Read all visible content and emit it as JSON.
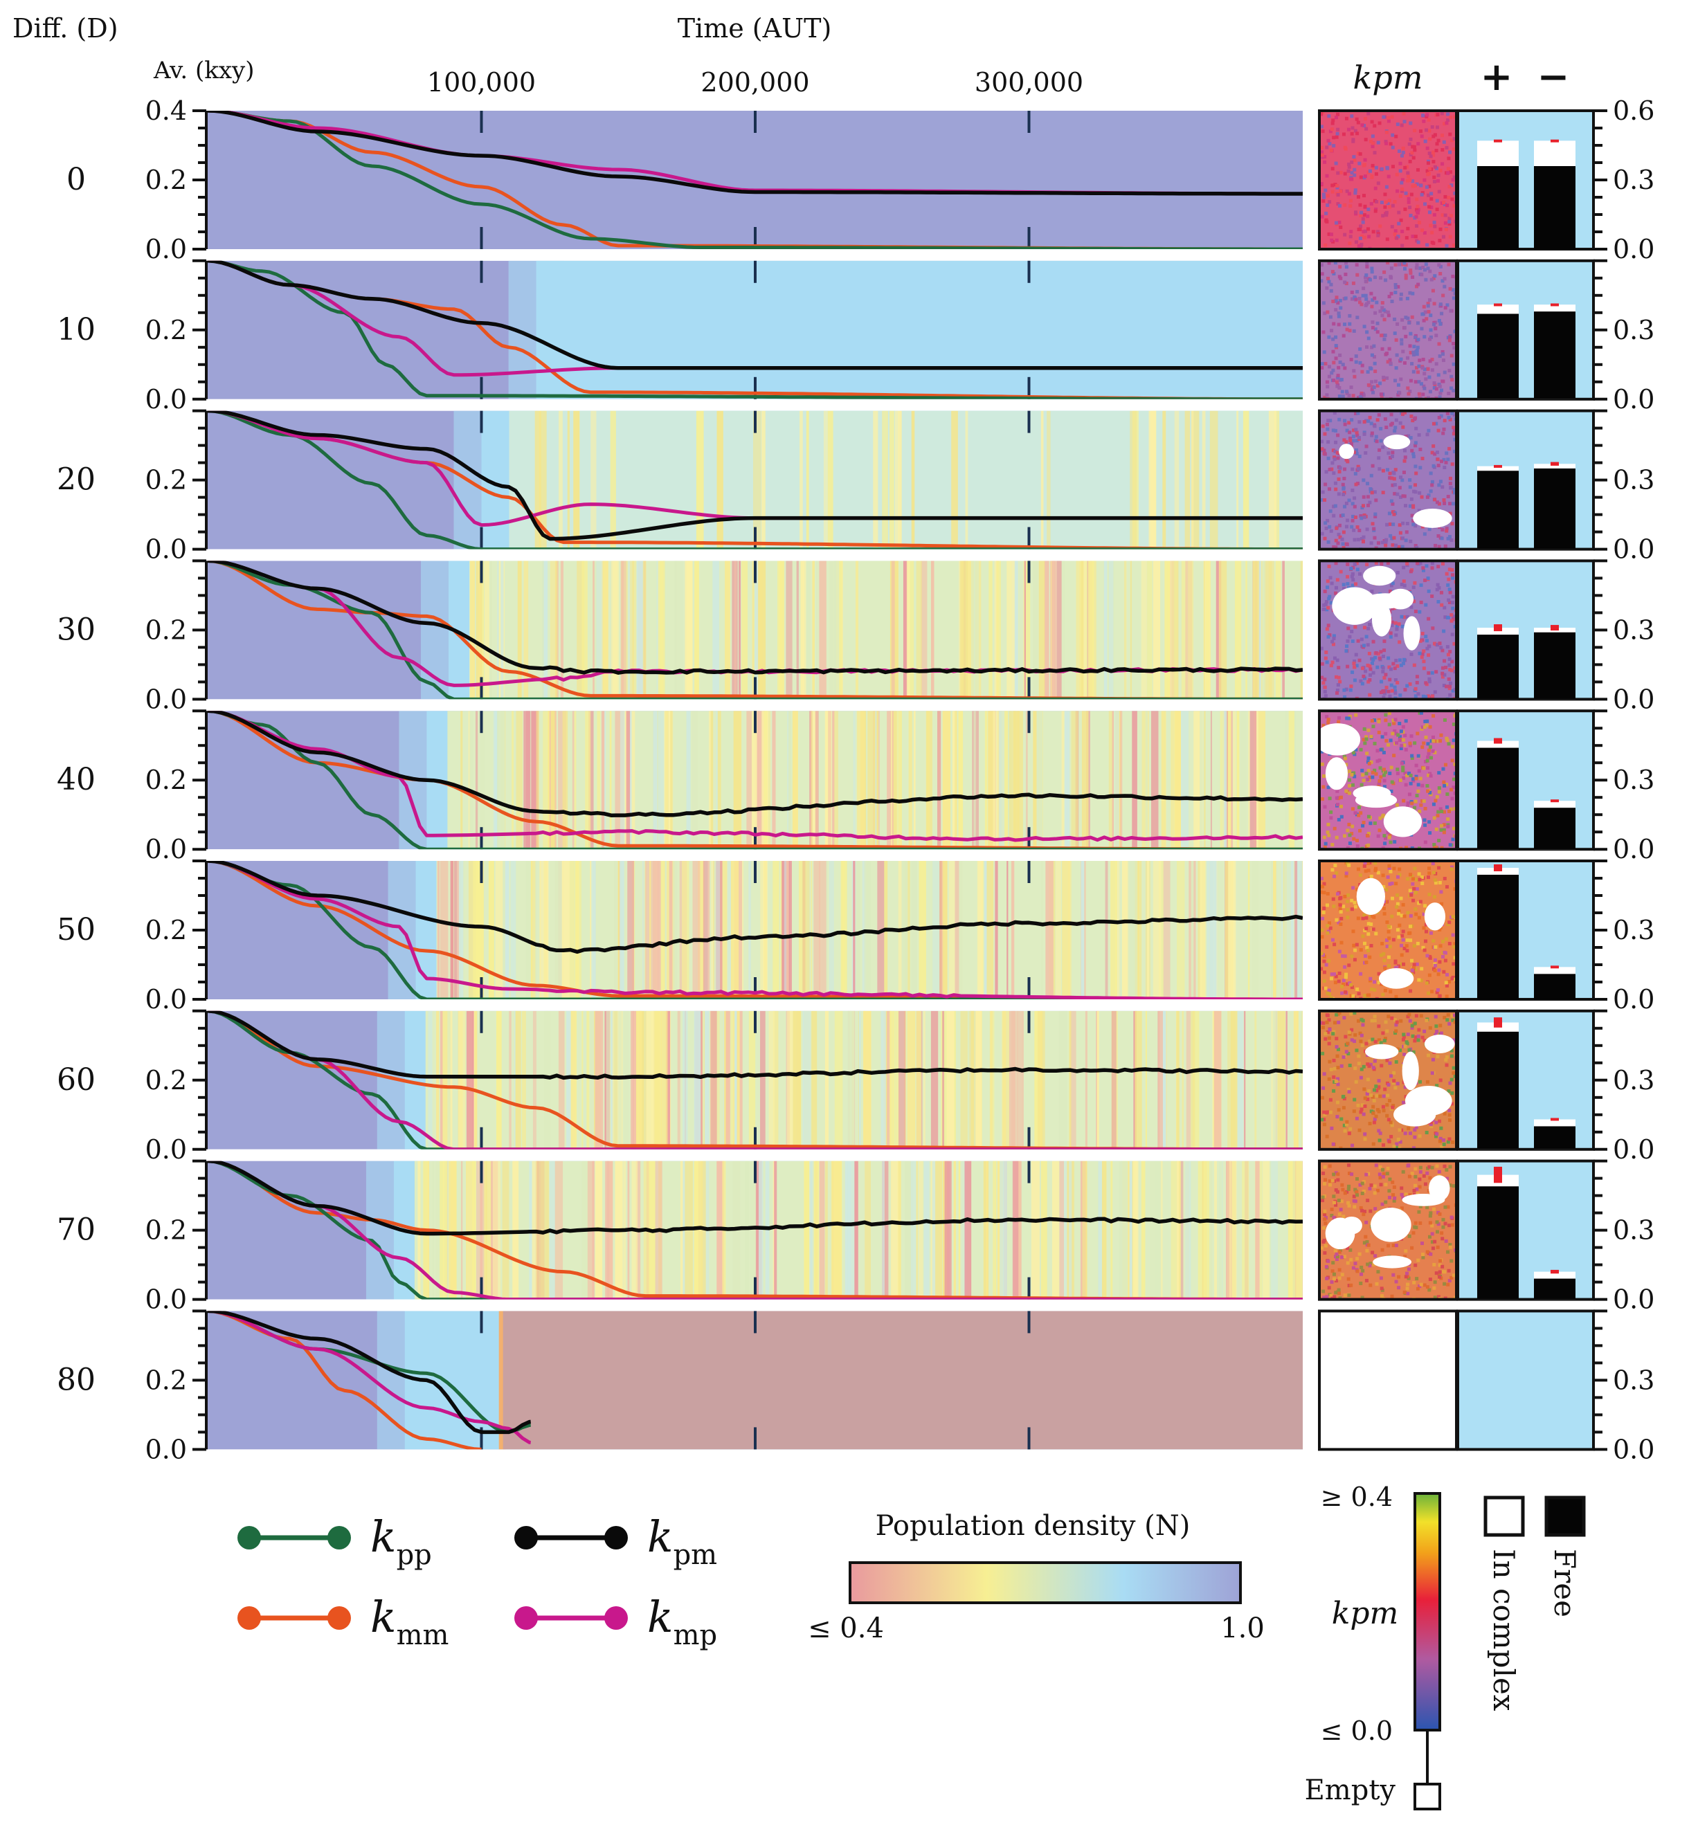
{
  "header": {
    "diff_label": "Diff. (D)",
    "time_label": "Time (AUT)",
    "av_label": "Av. (kxy)",
    "kpm_label": "kpm",
    "plus_label": "+",
    "minus_label": "−"
  },
  "colors": {
    "kpp": "#1e6b3f",
    "kmm": "#e8531f",
    "kpm": "#0a0a0a",
    "kmp": "#c8188c",
    "bar_panel_bg": "#aee0f5",
    "density_low": "#e99a9e",
    "density_mid_low": "#f7ef93",
    "density_mid_high": "#a9dcf4",
    "density_high": "#9ea3d6",
    "dead_region": "#c9a1a1"
  },
  "chart_data": {
    "type": "line",
    "x_axis": {
      "label": "Time (AUT)",
      "ticks": [
        100000,
        200000,
        300000
      ],
      "tick_labels": [
        "100,000",
        "200,000",
        "300,000"
      ],
      "xlim": [
        0,
        400000
      ]
    },
    "y_axis_left": {
      "label": "Av. (kxy)",
      "ylim": [
        0,
        0.4
      ],
      "tick_labels": [
        "0.0",
        "0.2",
        "0.4"
      ]
    },
    "y_axis_right": {
      "ylim": [
        0,
        0.6
      ],
      "tick_labels": [
        "0.0",
        "0.3",
        "0.6"
      ]
    },
    "legend": [
      {
        "key": "kpp",
        "sym": "k",
        "sub": "pp"
      },
      {
        "key": "kpm",
        "sym": "k",
        "sub": "pm"
      },
      {
        "key": "kmm",
        "sym": "k",
        "sub": "mm"
      },
      {
        "key": "kmp",
        "sym": "k",
        "sub": "mp"
      }
    ],
    "colorbar_density": {
      "title": "Population density (N)",
      "min_label": "≤ 0.4",
      "max_label": "1.0"
    },
    "colorbar_kpm": {
      "label": "kpm",
      "max_label": "≥ 0.4",
      "min_label": "≤ 0.0",
      "empty_label": "Empty"
    },
    "bar_legend": {
      "open_label": "In complex",
      "filled_label": "Free"
    },
    "rows": [
      {
        "D": "0",
        "end_time": 400000,
        "kpp": [
          [
            0,
            0.4
          ],
          [
            30000,
            0.37
          ],
          [
            60000,
            0.24
          ],
          [
            100000,
            0.13
          ],
          [
            140000,
            0.03
          ],
          [
            180000,
            0.005
          ],
          [
            400000,
            0.0
          ]
        ],
        "kmm": [
          [
            0,
            0.4
          ],
          [
            30000,
            0.37
          ],
          [
            60000,
            0.28
          ],
          [
            100000,
            0.18
          ],
          [
            130000,
            0.07
          ],
          [
            150000,
            0.01
          ],
          [
            400000,
            0.0
          ]
        ],
        "kpm": [
          [
            0,
            0.4
          ],
          [
            40000,
            0.34
          ],
          [
            100000,
            0.27
          ],
          [
            150000,
            0.21
          ],
          [
            200000,
            0.165
          ],
          [
            400000,
            0.16
          ]
        ],
        "kmp": [
          [
            0,
            0.4
          ],
          [
            40000,
            0.35
          ],
          [
            100000,
            0.27
          ],
          [
            150000,
            0.23
          ],
          [
            200000,
            0.17
          ],
          [
            400000,
            0.16
          ]
        ],
        "bars": {
          "plus_total": 0.47,
          "plus_free": 0.36,
          "minus_total": 0.47,
          "minus_free": 0.36,
          "plus_err": 0.005,
          "minus_err": 0.005
        }
      },
      {
        "D": "10",
        "end_time": 400000,
        "kpp": [
          [
            0,
            0.4
          ],
          [
            20000,
            0.37
          ],
          [
            50000,
            0.25
          ],
          [
            65000,
            0.1
          ],
          [
            80000,
            0.01
          ],
          [
            400000,
            0.0
          ]
        ],
        "kmm": [
          [
            0,
            0.4
          ],
          [
            30000,
            0.33
          ],
          [
            60000,
            0.29
          ],
          [
            90000,
            0.26
          ],
          [
            110000,
            0.15
          ],
          [
            140000,
            0.02
          ],
          [
            400000,
            0.0
          ]
        ],
        "kpm": [
          [
            0,
            0.4
          ],
          [
            30000,
            0.33
          ],
          [
            60000,
            0.29
          ],
          [
            100000,
            0.22
          ],
          [
            150000,
            0.09
          ],
          [
            400000,
            0.09
          ]
        ],
        "kmp": [
          [
            0,
            0.4
          ],
          [
            30000,
            0.33
          ],
          [
            70000,
            0.18
          ],
          [
            90000,
            0.07
          ],
          [
            150000,
            0.09
          ],
          [
            400000,
            0.09
          ]
        ],
        "bars": {
          "plus_total": 0.41,
          "plus_free": 0.37,
          "minus_total": 0.41,
          "minus_free": 0.38,
          "plus_err": 0.005,
          "minus_err": 0.005
        }
      },
      {
        "D": "20",
        "end_time": 400000,
        "kpp": [
          [
            0,
            0.4
          ],
          [
            30000,
            0.33
          ],
          [
            60000,
            0.19
          ],
          [
            80000,
            0.04
          ],
          [
            100000,
            0.0
          ],
          [
            400000,
            0.0
          ]
        ],
        "kmm": [
          [
            0,
            0.4
          ],
          [
            40000,
            0.32
          ],
          [
            80000,
            0.25
          ],
          [
            110000,
            0.15
          ],
          [
            130000,
            0.02
          ],
          [
            400000,
            0.0
          ]
        ],
        "kpm": [
          [
            0,
            0.4
          ],
          [
            40000,
            0.33
          ],
          [
            80000,
            0.29
          ],
          [
            110000,
            0.18
          ],
          [
            125000,
            0.03
          ],
          [
            200000,
            0.09
          ],
          [
            400000,
            0.09
          ]
        ],
        "kmp": [
          [
            0,
            0.4
          ],
          [
            40000,
            0.32
          ],
          [
            80000,
            0.25
          ],
          [
            100000,
            0.07
          ],
          [
            140000,
            0.13
          ],
          [
            200000,
            0.09
          ],
          [
            400000,
            0.09
          ]
        ],
        "bars": {
          "plus_total": 0.36,
          "plus_free": 0.34,
          "minus_total": 0.37,
          "minus_free": 0.35,
          "plus_err": 0.005,
          "minus_err": 0.008
        }
      },
      {
        "D": "30",
        "end_time": 400000,
        "kpp": [
          [
            0,
            0.4
          ],
          [
            30000,
            0.33
          ],
          [
            60000,
            0.25
          ],
          [
            80000,
            0.05
          ],
          [
            90000,
            0.0
          ],
          [
            400000,
            0.0
          ]
        ],
        "kmm": [
          [
            0,
            0.4
          ],
          [
            40000,
            0.26
          ],
          [
            60000,
            0.25
          ],
          [
            80000,
            0.24
          ],
          [
            110000,
            0.08
          ],
          [
            140000,
            0.01
          ],
          [
            400000,
            0.0
          ]
        ],
        "kpm": [
          [
            0,
            0.4
          ],
          [
            40000,
            0.32
          ],
          [
            80000,
            0.22
          ],
          [
            120000,
            0.09
          ],
          [
            140000,
            0.08
          ],
          [
            400000,
            0.085
          ]
        ],
        "kmp": [
          [
            0,
            0.4
          ],
          [
            40000,
            0.32
          ],
          [
            70000,
            0.12
          ],
          [
            90000,
            0.04
          ],
          [
            130000,
            0.06
          ],
          [
            150000,
            0.08
          ],
          [
            400000,
            0.085
          ]
        ],
        "bars": {
          "plus_total": 0.31,
          "plus_free": 0.28,
          "minus_total": 0.31,
          "minus_free": 0.29,
          "plus_err": 0.015,
          "minus_err": 0.012
        }
      },
      {
        "D": "40",
        "end_time": 400000,
        "kpp": [
          [
            0,
            0.4
          ],
          [
            20000,
            0.36
          ],
          [
            40000,
            0.25
          ],
          [
            60000,
            0.1
          ],
          [
            80000,
            0.0
          ],
          [
            400000,
            0.0
          ]
        ],
        "kmm": [
          [
            0,
            0.4
          ],
          [
            40000,
            0.25
          ],
          [
            80000,
            0.2
          ],
          [
            120000,
            0.08
          ],
          [
            150000,
            0.01
          ],
          [
            400000,
            0.0
          ]
        ],
        "kpm": [
          [
            0,
            0.4
          ],
          [
            40000,
            0.28
          ],
          [
            80000,
            0.2
          ],
          [
            120000,
            0.11
          ],
          [
            150000,
            0.1
          ],
          [
            300000,
            0.155
          ],
          [
            400000,
            0.145
          ]
        ],
        "kmp": [
          [
            0,
            0.4
          ],
          [
            40000,
            0.29
          ],
          [
            70000,
            0.21
          ],
          [
            80000,
            0.04
          ],
          [
            150000,
            0.05
          ],
          [
            300000,
            0.03
          ],
          [
            400000,
            0.035
          ]
        ],
        "bars": {
          "plus_total": 0.47,
          "plus_free": 0.44,
          "minus_total": 0.21,
          "minus_free": 0.18,
          "plus_err": 0.012,
          "minus_err": 0.006
        }
      },
      {
        "D": "50",
        "end_time": 400000,
        "kpp": [
          [
            0,
            0.4
          ],
          [
            30000,
            0.33
          ],
          [
            60000,
            0.15
          ],
          [
            80000,
            0.0
          ],
          [
            400000,
            0.0
          ]
        ],
        "kmm": [
          [
            0,
            0.4
          ],
          [
            40000,
            0.27
          ],
          [
            80000,
            0.14
          ],
          [
            120000,
            0.04
          ],
          [
            150000,
            0.01
          ],
          [
            400000,
            0.0
          ]
        ],
        "kpm": [
          [
            0,
            0.4
          ],
          [
            40000,
            0.3
          ],
          [
            100000,
            0.21
          ],
          [
            130000,
            0.14
          ],
          [
            200000,
            0.18
          ],
          [
            300000,
            0.22
          ],
          [
            400000,
            0.235
          ]
        ],
        "kmp": [
          [
            0,
            0.4
          ],
          [
            40000,
            0.29
          ],
          [
            70000,
            0.21
          ],
          [
            80000,
            0.06
          ],
          [
            110000,
            0.03
          ],
          [
            150000,
            0.02
          ],
          [
            400000,
            0.0
          ]
        ],
        "bars": {
          "plus_total": 0.57,
          "plus_free": 0.54,
          "minus_total": 0.14,
          "minus_free": 0.11,
          "plus_err": 0.015,
          "minus_err": 0.006
        }
      },
      {
        "D": "60",
        "end_time": 400000,
        "kpp": [
          [
            0,
            0.4
          ],
          [
            30000,
            0.28
          ],
          [
            60000,
            0.16
          ],
          [
            80000,
            0.0
          ],
          [
            400000,
            0.0
          ]
        ],
        "kmm": [
          [
            0,
            0.4
          ],
          [
            40000,
            0.24
          ],
          [
            90000,
            0.18
          ],
          [
            120000,
            0.12
          ],
          [
            150000,
            0.01
          ],
          [
            400000,
            0.0
          ]
        ],
        "kpm": [
          [
            0,
            0.4
          ],
          [
            40000,
            0.26
          ],
          [
            80000,
            0.21
          ],
          [
            150000,
            0.21
          ],
          [
            300000,
            0.23
          ],
          [
            400000,
            0.225
          ]
        ],
        "kmp": [
          [
            0,
            0.4
          ],
          [
            40000,
            0.26
          ],
          [
            70000,
            0.08
          ],
          [
            90000,
            0.0
          ],
          [
            400000,
            0.0
          ]
        ],
        "bars": {
          "plus_total": 0.55,
          "plus_free": 0.51,
          "minus_total": 0.13,
          "minus_free": 0.1,
          "plus_err": 0.022,
          "minus_err": 0.006
        }
      },
      {
        "D": "70",
        "end_time": 400000,
        "kpp": [
          [
            0,
            0.4
          ],
          [
            30000,
            0.3
          ],
          [
            60000,
            0.17
          ],
          [
            70000,
            0.05
          ],
          [
            80000,
            0.0
          ],
          [
            400000,
            0.0
          ]
        ],
        "kmm": [
          [
            0,
            0.4
          ],
          [
            40000,
            0.25
          ],
          [
            60000,
            0.23
          ],
          [
            80000,
            0.2
          ],
          [
            130000,
            0.08
          ],
          [
            160000,
            0.01
          ],
          [
            400000,
            0.0
          ]
        ],
        "kpm": [
          [
            0,
            0.4
          ],
          [
            40000,
            0.27
          ],
          [
            80000,
            0.19
          ],
          [
            150000,
            0.2
          ],
          [
            300000,
            0.23
          ],
          [
            400000,
            0.225
          ]
        ],
        "kmp": [
          [
            0,
            0.4
          ],
          [
            40000,
            0.27
          ],
          [
            70000,
            0.12
          ],
          [
            90000,
            0.02
          ],
          [
            110000,
            0.0
          ],
          [
            400000,
            0.0
          ]
        ],
        "bars": {
          "plus_total": 0.54,
          "plus_free": 0.49,
          "minus_total": 0.12,
          "minus_free": 0.09,
          "plus_err": 0.035,
          "minus_err": 0.008
        }
      },
      {
        "D": "80",
        "end_time": 118000,
        "kpp": [
          [
            0,
            0.4
          ],
          [
            40000,
            0.29
          ],
          [
            80000,
            0.22
          ],
          [
            110000,
            0.05
          ],
          [
            118000,
            0.07
          ]
        ],
        "kmm": [
          [
            0,
            0.4
          ],
          [
            30000,
            0.32
          ],
          [
            50000,
            0.17
          ],
          [
            80000,
            0.03
          ],
          [
            100000,
            0.0
          ]
        ],
        "kpm": [
          [
            0,
            0.4
          ],
          [
            40000,
            0.32
          ],
          [
            80000,
            0.2
          ],
          [
            100000,
            0.05
          ],
          [
            110000,
            0.05
          ],
          [
            118000,
            0.08
          ]
        ],
        "kmp": [
          [
            0,
            0.4
          ],
          [
            40000,
            0.29
          ],
          [
            80000,
            0.12
          ],
          [
            100000,
            0.08
          ],
          [
            110000,
            0.06
          ],
          [
            118000,
            0.02
          ]
        ],
        "bars": null
      }
    ]
  }
}
